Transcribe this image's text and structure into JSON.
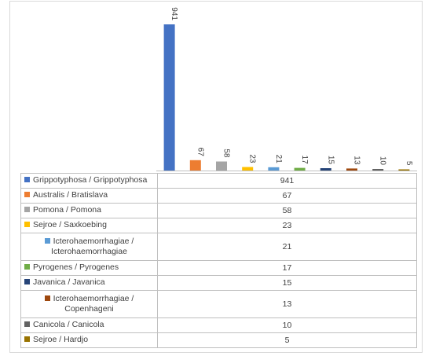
{
  "chart_data": {
    "type": "bar",
    "title": "",
    "xlabel": "",
    "ylabel": "",
    "ylim": [
      0,
      941
    ],
    "legend": "data-table-below",
    "grid": false,
    "categories": [
      "Grippotyphosa / Grippotyphosa",
      "Australis / Bratislava",
      "Pomona / Pomona",
      "Sejroe / Saxkoebing",
      "Icterohaemorrhagiae / Icterohaemorrhagiae",
      "Pyrogenes / Pyrogenes",
      "Javanica / Javanica",
      "Icterohaemorrhagiae / Copenhageni",
      "Canicola / Canicola",
      "Sejroe / Hardjo"
    ],
    "label_lines": [
      [
        "Grippotyphosa / Grippotyphosa"
      ],
      [
        "Australis / Bratislava"
      ],
      [
        "Pomona / Pomona"
      ],
      [
        "Sejroe / Saxkoebing"
      ],
      [
        "Icterohaemorrhagiae /",
        "Icterohaemorrhagiae"
      ],
      [
        "Pyrogenes / Pyrogenes"
      ],
      [
        "Javanica / Javanica"
      ],
      [
        "Icterohaemorrhagiae /",
        "Copenhageni"
      ],
      [
        "Canicola / Canicola"
      ],
      [
        "Sejroe / Hardjo"
      ]
    ],
    "values": [
      941,
      67,
      58,
      23,
      21,
      17,
      15,
      13,
      10,
      5
    ],
    "data_labels": [
      "941",
      "67",
      "58",
      "23",
      "21",
      "17",
      "15",
      "13",
      "10",
      "5"
    ],
    "colors": [
      "#4472c4",
      "#ed7d31",
      "#a5a5a5",
      "#ffc000",
      "#5b9bd5",
      "#70ad47",
      "#264478",
      "#9e480e",
      "#636363",
      "#997300"
    ]
  }
}
